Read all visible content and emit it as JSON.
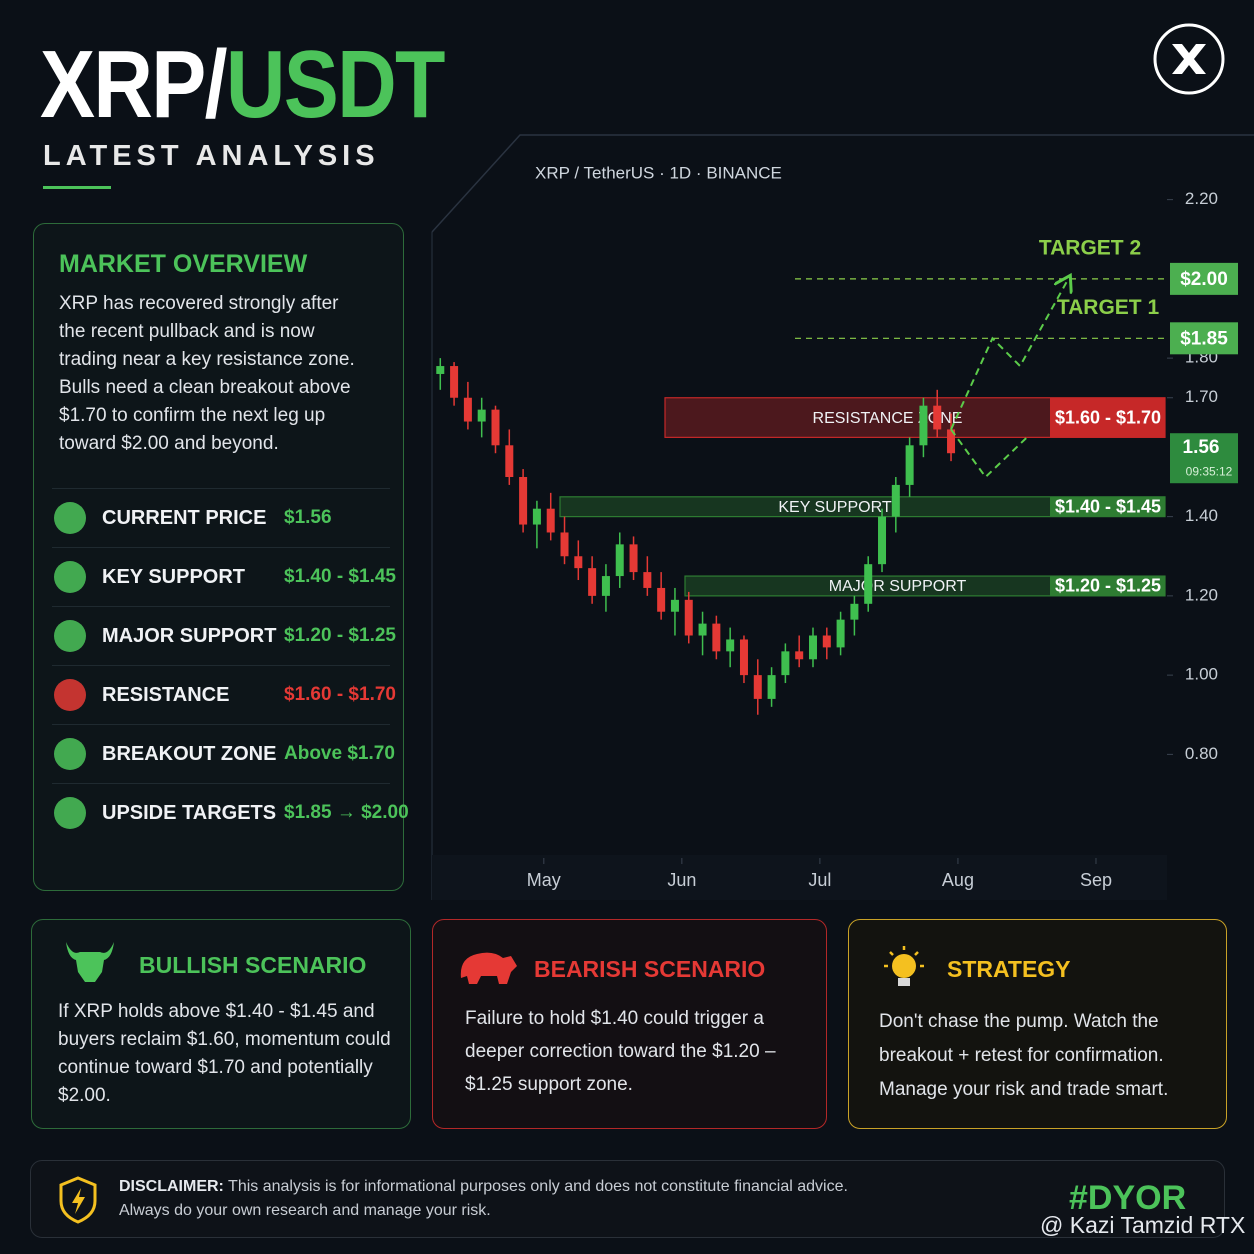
{
  "header": {
    "title_part1": "XRP/",
    "title_part2": "USDT",
    "subtitle": "LATEST ANALYSIS"
  },
  "overview": {
    "title": "MARKET OVERVIEW",
    "text": "XRP has recovered strongly after the recent pullback and is now trading near a key resistance zone. Bulls need a clean breakout above $1.70 to confirm the next leg up toward $2.00 and beyond.",
    "rows": [
      {
        "label": "CURRENT PRICE",
        "value": "$1.56",
        "color": "#4cc35a"
      },
      {
        "label": "KEY SUPPORT",
        "value": "$1.40 - $1.45",
        "color": "#4cc35a"
      },
      {
        "label": "MAJOR SUPPORT",
        "value": "$1.20 - $1.25",
        "color": "#4cc35a"
      },
      {
        "label": "RESISTANCE",
        "value": "$1.60 - $1.70",
        "color": "#e53935"
      },
      {
        "label": "BREAKOUT ZONE",
        "value": "Above $1.70",
        "color": "#4cc35a"
      },
      {
        "label": "UPSIDE TARGETS",
        "value": "$1.85 → $2.00",
        "color": "#4cc35a"
      }
    ]
  },
  "chart_data": {
    "type": "candlestick",
    "title": "XRP / TetherUS · 1D · BINANCE",
    "categories": [
      null,
      null,
      null,
      null,
      null,
      null,
      null,
      null,
      null,
      null,
      null,
      null,
      null,
      null,
      null,
      null,
      null,
      null,
      null,
      null,
      null,
      null,
      null,
      null,
      null,
      null,
      null,
      null,
      null,
      null,
      null,
      null,
      null,
      null,
      null,
      null,
      null,
      null
    ],
    "open": [
      1.76,
      1.78,
      1.7,
      1.64,
      1.67,
      1.58,
      1.5,
      1.38,
      1.42,
      1.36,
      1.3,
      1.27,
      1.2,
      1.25,
      1.33,
      1.26,
      1.22,
      1.16,
      1.19,
      1.1,
      1.13,
      1.06,
      1.09,
      1.0,
      0.94,
      1.0,
      1.06,
      1.04,
      1.1,
      1.07,
      1.14,
      1.18,
      1.28,
      1.4,
      1.48,
      1.58,
      1.68,
      1.62
    ],
    "high": [
      1.8,
      1.79,
      1.74,
      1.7,
      1.68,
      1.62,
      1.52,
      1.44,
      1.46,
      1.4,
      1.34,
      1.3,
      1.28,
      1.36,
      1.35,
      1.3,
      1.26,
      1.22,
      1.21,
      1.16,
      1.15,
      1.12,
      1.1,
      1.04,
      1.02,
      1.08,
      1.1,
      1.12,
      1.12,
      1.16,
      1.2,
      1.3,
      1.42,
      1.5,
      1.6,
      1.7,
      1.72,
      1.66
    ],
    "low": [
      1.72,
      1.68,
      1.62,
      1.6,
      1.56,
      1.48,
      1.36,
      1.32,
      1.34,
      1.28,
      1.24,
      1.18,
      1.16,
      1.22,
      1.24,
      1.2,
      1.14,
      1.1,
      1.08,
      1.05,
      1.04,
      1.02,
      0.98,
      0.9,
      0.92,
      0.98,
      1.02,
      1.02,
      1.04,
      1.05,
      1.1,
      1.16,
      1.26,
      1.36,
      1.45,
      1.55,
      1.6,
      1.54
    ],
    "close": [
      1.78,
      1.7,
      1.64,
      1.67,
      1.58,
      1.5,
      1.38,
      1.42,
      1.36,
      1.3,
      1.27,
      1.2,
      1.25,
      1.33,
      1.26,
      1.22,
      1.16,
      1.19,
      1.1,
      1.13,
      1.06,
      1.09,
      1.0,
      0.94,
      1.0,
      1.06,
      1.04,
      1.1,
      1.07,
      1.14,
      1.18,
      1.28,
      1.4,
      1.48,
      1.58,
      1.68,
      1.62,
      1.56
    ],
    "up_color": "#3fbf4f",
    "down_color": "#e53935",
    "xlim": [
      -0.6,
      52.5
    ],
    "xticks": [
      {
        "value": 7.5,
        "label": "May"
      },
      {
        "value": 17.5,
        "label": "Jun"
      },
      {
        "value": 27.5,
        "label": "Jul"
      },
      {
        "value": 37.5,
        "label": "Aug"
      },
      {
        "value": 47.5,
        "label": "Sep"
      }
    ],
    "ylim": [
      0.7,
      2.3
    ],
    "yticks": [
      {
        "value": 2.2,
        "label": "2.20"
      },
      {
        "value": 1.8,
        "label": "1.80"
      },
      {
        "value": 1.7,
        "label": "1.70"
      },
      {
        "value": 1.4,
        "label": "1.40"
      },
      {
        "value": 1.2,
        "label": "1.20"
      },
      {
        "value": 1.0,
        "label": "1.00"
      },
      {
        "value": 0.8,
        "label": "0.80"
      }
    ],
    "zones": [
      {
        "label": "RESISTANCE ZONE",
        "range": [
          1.6,
          1.7
        ],
        "range_label": "$1.60 - $1.70",
        "color": "#c62828"
      },
      {
        "label": "KEY SUPPORT",
        "range": [
          1.4,
          1.45
        ],
        "range_label": "$1.40 - $1.45",
        "color": "#2e7d32"
      },
      {
        "label": "MAJOR SUPPORT",
        "range": [
          1.2,
          1.25
        ],
        "range_label": "$1.20 - $1.25",
        "color": "#2e7d32"
      }
    ],
    "targets": [
      {
        "label": "TARGET 2",
        "value": 2.0,
        "value_label": "$2.00"
      },
      {
        "label": "TARGET 1",
        "value": 1.85,
        "value_label": "$1.85"
      }
    ],
    "current": {
      "value": 1.56,
      "time": "09:35:12"
    },
    "projections": [
      {
        "x": [
          37,
          40,
          42,
          45.5
        ],
        "values": [
          1.62,
          1.85,
          1.78,
          2.0
        ]
      },
      {
        "x": [
          37,
          39.5,
          42.5
        ],
        "values": [
          1.62,
          1.5,
          1.6
        ]
      }
    ]
  },
  "scenarios": [
    {
      "title": "BULLISH SCENARIO",
      "text": "If XRP holds above $1.40 - $1.45 and buyers reclaim $1.60, momentum could continue toward $1.70 and potentially $2.00."
    },
    {
      "title": "BEARISH SCENARIO",
      "text": "Failure to hold $1.40 could trigger a deeper correction toward the $1.20 – $1.25 support zone."
    },
    {
      "title": "STRATEGY",
      "text": "Don't chase the pump. Watch the breakout + retest for confirmation. Manage your risk and trade smart."
    }
  ],
  "disclaimer": {
    "label": "DISCLAIMER:",
    "text": "This analysis is for informational purposes only and does not constitute financial advice.",
    "text2": "Always do your own research and manage your risk."
  },
  "hashtag": "#DYOR",
  "watermark": "@ Kazi Tamzid RTX"
}
